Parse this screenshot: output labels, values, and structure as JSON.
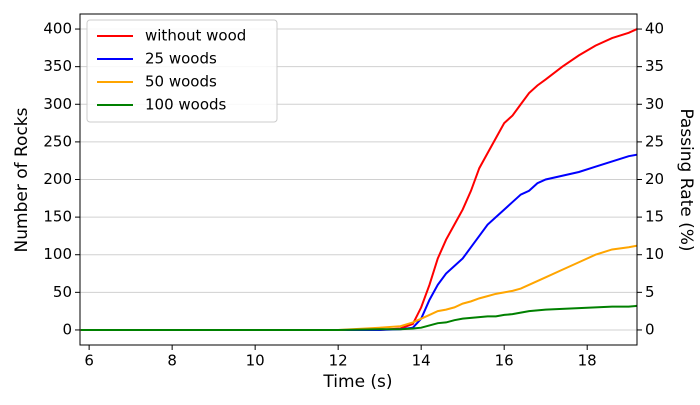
{
  "chart_data": {
    "type": "line",
    "x_label": "Time (s)",
    "y_label": "Number of Rocks",
    "y2_label": "Passing Rate (%)",
    "x": [
      5.8,
      12,
      13,
      13.5,
      13.8,
      14,
      14.2,
      14.4,
      14.6,
      14.8,
      15,
      15.2,
      15.4,
      15.6,
      15.8,
      16,
      16.2,
      16.4,
      16.6,
      16.8,
      17,
      17.4,
      17.8,
      18.2,
      18.6,
      19,
      19.2
    ],
    "series": [
      {
        "name": "without wood",
        "color": "#ff0000",
        "values": [
          0,
          0,
          0,
          2,
          8,
          30,
          60,
          95,
          120,
          140,
          160,
          185,
          215,
          235,
          255,
          275,
          285,
          300,
          315,
          325,
          333,
          350,
          365,
          378,
          388,
          395,
          400
        ]
      },
      {
        "name": "25 woods",
        "color": "#0000ff",
        "values": [
          0,
          0,
          0,
          1,
          3,
          15,
          40,
          60,
          75,
          85,
          95,
          110,
          125,
          140,
          150,
          160,
          170,
          180,
          185,
          195,
          200,
          205,
          210,
          217,
          224,
          231,
          233
        ]
      },
      {
        "name": "50 woods",
        "color": "#ffa500",
        "values": [
          0,
          0,
          3,
          5,
          10,
          15,
          20,
          25,
          27,
          30,
          35,
          38,
          42,
          45,
          48,
          50,
          52,
          55,
          60,
          65,
          70,
          80,
          90,
          100,
          107,
          110,
          112
        ]
      },
      {
        "name": "100 woods",
        "color": "#008000",
        "values": [
          0,
          0,
          1,
          1,
          2,
          3,
          6,
          9,
          10,
          13,
          15,
          16,
          17,
          18,
          18,
          20,
          21,
          23,
          25,
          26,
          27,
          28,
          29,
          30,
          31,
          31,
          32
        ]
      }
    ],
    "xlim": [
      5.78,
      19.2
    ],
    "xticks": [
      6,
      8,
      10,
      12,
      14,
      16,
      18
    ],
    "ylim": [
      -20,
      420
    ],
    "yticks": [
      0,
      50,
      100,
      150,
      200,
      250,
      300,
      350,
      400
    ],
    "y2lim": [
      -2,
      42
    ],
    "y2ticks": [
      0,
      5,
      10,
      15,
      20,
      25,
      30,
      35,
      40
    ],
    "grid": true,
    "legend": "upper left"
  }
}
